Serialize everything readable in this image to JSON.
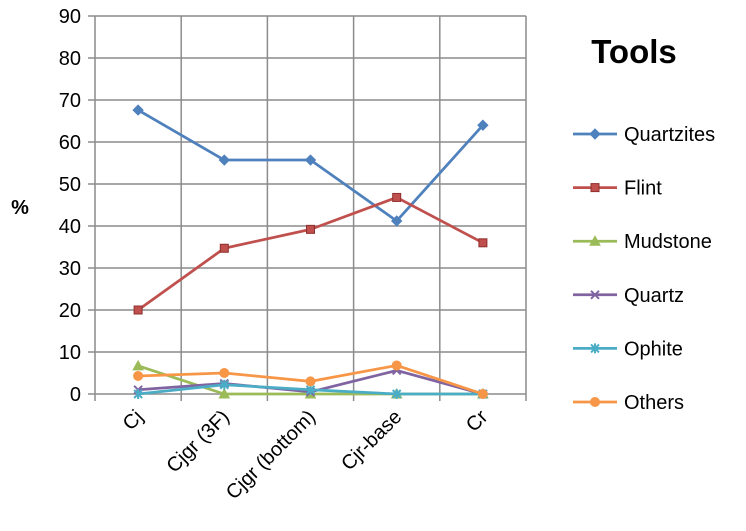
{
  "chart_data": {
    "type": "line",
    "title": "Tools",
    "xlabel": "",
    "ylabel": "%",
    "ylim": [
      0,
      90
    ],
    "yticks": [
      0,
      10,
      20,
      30,
      40,
      50,
      60,
      70,
      80,
      90
    ],
    "grid": "vertical and horizontal gridlines",
    "legend_position": "right",
    "categories": [
      "Cj",
      "Cjgr (3F)",
      "Cjgr (bottom)",
      "Cjr-base",
      "Cr"
    ],
    "series": [
      {
        "name": "Quartzites",
        "color": "#4F81BD",
        "marker": "diamond",
        "values": [
          67.6,
          55.7,
          55.7,
          41.2,
          64.0
        ]
      },
      {
        "name": "Flint",
        "color": "#C0504D",
        "marker": "square",
        "values": [
          20.0,
          34.7,
          39.2,
          46.8,
          36.0
        ]
      },
      {
        "name": "Mudstone",
        "color": "#9BBB59",
        "marker": "triangle",
        "values": [
          6.7,
          0.0,
          0.0,
          0.0,
          0.0
        ]
      },
      {
        "name": "Quartz",
        "color": "#8064A2",
        "marker": "x",
        "values": [
          1.0,
          2.5,
          0.5,
          5.6,
          0.0
        ]
      },
      {
        "name": "Ophite",
        "color": "#4BACC6",
        "marker": "star",
        "values": [
          0.0,
          2.2,
          1.0,
          0.0,
          0.0
        ]
      },
      {
        "name": "Others",
        "color": "#F79646",
        "marker": "circle",
        "values": [
          4.3,
          5.0,
          3.0,
          6.8,
          0.0
        ]
      }
    ]
  }
}
